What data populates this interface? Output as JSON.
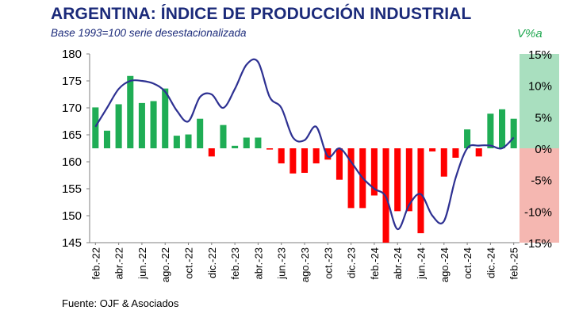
{
  "title": "ARGENTINA: ÍNDICE DE PRODUCCIÓN INDUSTRIAL",
  "subtitle": "Base 1993=100 serie desestacionalizada",
  "right_axis_label": "V%a",
  "source": "Fuente: OJF & Asociados",
  "colors": {
    "line": "#2e3192",
    "positive_bar": "#1fad55",
    "negative_bar": "#ff0000",
    "positive_band": "#a9dfbf",
    "negative_band": "#f5b7b1",
    "title": "#1b2a7a"
  },
  "chart_data": {
    "type": "bar+line",
    "categories": [
      "feb.-22",
      "mar.-22",
      "abr.-22",
      "may.-22",
      "jun.-22",
      "jul.-22",
      "ago.-22",
      "sep.-22",
      "oct.-22",
      "nov.-22",
      "dic.-22",
      "ene.-23",
      "feb.-23",
      "mar.-23",
      "abr.-23",
      "may.-23",
      "jun.-23",
      "jul.-23",
      "ago.-23",
      "sep.-23",
      "oct.-23",
      "nov.-23",
      "dic.-23",
      "ene.-24",
      "feb.-24",
      "mar.-24",
      "abr.-24",
      "may.-24",
      "jun.-24",
      "jul.-24",
      "ago.-24",
      "sep.-24",
      "oct.-24",
      "nov.-24",
      "dic.-24",
      "ene.-25",
      "feb.-25"
    ],
    "x_tick_labels": [
      "feb.-22",
      "abr.-22",
      "jun.-22",
      "ago.-22",
      "oct.-22",
      "dic.-22",
      "feb.-23",
      "abr.-23",
      "jun.-23",
      "ago.-23",
      "oct.-23",
      "dic.-23",
      "feb.-24",
      "abr.-24",
      "jun.-24",
      "ago.-24",
      "oct.-24",
      "dic.-24",
      "feb.-25"
    ],
    "series": [
      {
        "axis": "left",
        "type": "line",
        "values": [
          166.5,
          170,
          173.5,
          175,
          175,
          174.5,
          173,
          169.5,
          167.5,
          172,
          172.5,
          170,
          173.5,
          178,
          178.5,
          172,
          170,
          164.5,
          164,
          166.5,
          161,
          162.5,
          160,
          157,
          155,
          153.5,
          147.5,
          152,
          154,
          150,
          149,
          157,
          162.5,
          163,
          163,
          162.5,
          164.5
        ]
      },
      {
        "axis": "right",
        "type": "bar",
        "values": [
          6.5,
          2.8,
          7,
          11.5,
          7.2,
          7.5,
          9.5,
          2,
          2.2,
          4.7,
          -1.3,
          3.7,
          0.4,
          1.7,
          1.7,
          -0.2,
          -2.4,
          -4,
          -3.9,
          -2.4,
          -1.8,
          -5,
          -9.5,
          -9.5,
          -7.5,
          -15,
          -10,
          -10,
          -13.5,
          -0.5,
          -4.5,
          -1.5,
          3,
          -1.3,
          5.5,
          6.2,
          4.7
        ]
      }
    ],
    "y_left": {
      "min": 145,
      "max": 180,
      "ticks": [
        "145",
        "150",
        "155",
        "160",
        "165",
        "170",
        "175",
        "180"
      ]
    },
    "y_right": {
      "min": -15,
      "max": 15,
      "ticks": [
        "-15%",
        "-10%",
        "-5%",
        "0%",
        "5%",
        "10%",
        "15%"
      ]
    },
    "grid": false,
    "legend": "none"
  }
}
